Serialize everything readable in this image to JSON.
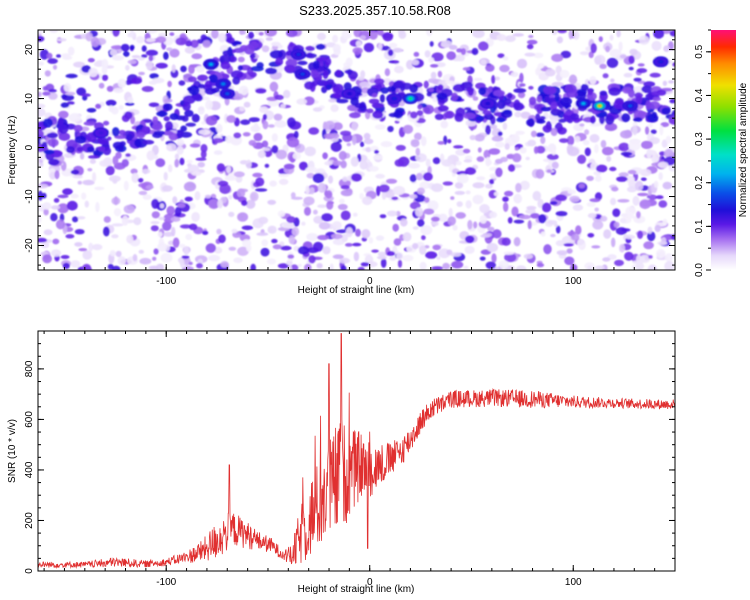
{
  "title": "S233.2025.357.10.58.R08",
  "colors": {
    "line": "#e03030",
    "frame": "#000000"
  },
  "colorbar": {
    "label": "Normalized spectral amplitude",
    "range": [
      0,
      0.55
    ],
    "ticks": [
      "0.0",
      "0.1",
      "0.2",
      "0.3",
      "0.4",
      "0.5"
    ],
    "tick_values": [
      0.0,
      0.1,
      0.2,
      0.3,
      0.4,
      0.5
    ]
  },
  "chart_data": [
    {
      "type": "heatmap",
      "xlabel": "Height of straight line (km)",
      "ylabel": "Frequency (Hz)",
      "xlim": [
        -163,
        150
      ],
      "ylim": [
        -25,
        24
      ],
      "xticks": [
        -100,
        0,
        100
      ],
      "xtick_labels": [
        "-100",
        "0",
        "100"
      ],
      "yticks": [
        -20,
        -10,
        0,
        10,
        20
      ],
      "ytick_labels": [
        "-20",
        "-10",
        "0",
        "10",
        "20"
      ],
      "band": {
        "description_points_km": [
          -130,
          -90,
          -80,
          -60,
          -40,
          -20,
          0,
          20,
          40,
          60,
          80,
          100,
          120,
          145
        ],
        "frequency_hz": [
          2,
          6,
          14,
          18,
          18,
          14,
          10,
          10,
          9.5,
          9,
          8.5,
          9,
          9,
          9
        ]
      },
      "hotspots": [
        {
          "x": -78,
          "y": 17,
          "a": 0.22
        },
        {
          "x": -72,
          "y": 13,
          "a": 0.2
        },
        {
          "x": -70,
          "y": 11,
          "a": 0.18
        },
        {
          "x": -35,
          "y": 19,
          "a": 0.16
        },
        {
          "x": -33,
          "y": 15,
          "a": 0.17
        },
        {
          "x": -10,
          "y": 11,
          "a": 0.14
        },
        {
          "x": 12,
          "y": 10,
          "a": 0.15
        },
        {
          "x": 20,
          "y": 10,
          "a": 0.3
        },
        {
          "x": 58,
          "y": 9,
          "a": 0.14
        },
        {
          "x": 105,
          "y": 9,
          "a": 0.22
        },
        {
          "x": 113,
          "y": 8.5,
          "a": 0.45
        },
        {
          "x": 128,
          "y": 8.5,
          "a": 0.18
        },
        {
          "x": 143,
          "y": 17.5,
          "a": 0.15
        },
        {
          "x": -132,
          "y": 3,
          "a": 0.12
        }
      ]
    },
    {
      "type": "line",
      "xlabel": "Height of straight line (km)",
      "ylabel": "SNR (10 * v/v)",
      "xlim": [
        -163,
        150
      ],
      "ylim": [
        0,
        950
      ],
      "xticks": [
        -100,
        0,
        100
      ],
      "xtick_labels": [
        "-100",
        "0",
        "100"
      ],
      "yticks": [
        0,
        200,
        400,
        600,
        800
      ],
      "ytick_labels": [
        "0",
        "200",
        "400",
        "600",
        "800"
      ],
      "series": [
        {
          "name": "SNR",
          "x": [
            -163,
            -140,
            -125,
            -110,
            -100,
            -90,
            -82,
            -77,
            -72,
            -68,
            -62,
            -55,
            -48,
            -42,
            -38,
            -34,
            -30,
            -25,
            -20,
            -16,
            -14,
            -12,
            -8,
            -4,
            0,
            5,
            10,
            15,
            20,
            25,
            30,
            40,
            60,
            80,
            100,
            120,
            140,
            150
          ],
          "baseline": [
            25,
            25,
            35,
            28,
            35,
            55,
            80,
            110,
            140,
            170,
            150,
            120,
            100,
            60,
            60,
            140,
            200,
            260,
            320,
            360,
            400,
            380,
            400,
            420,
            400,
            420,
            440,
            470,
            520,
            590,
            640,
            680,
            685,
            680,
            670,
            665,
            660,
            660
          ],
          "noise": [
            12,
            12,
            20,
            14,
            15,
            25,
            45,
            70,
            80,
            70,
            60,
            40,
            30,
            20,
            50,
            120,
            160,
            180,
            200,
            230,
            220,
            200,
            160,
            130,
            110,
            90,
            70,
            60,
            55,
            45,
            40,
            35,
            35,
            35,
            25,
            20,
            20,
            20
          ]
        }
      ]
    }
  ]
}
